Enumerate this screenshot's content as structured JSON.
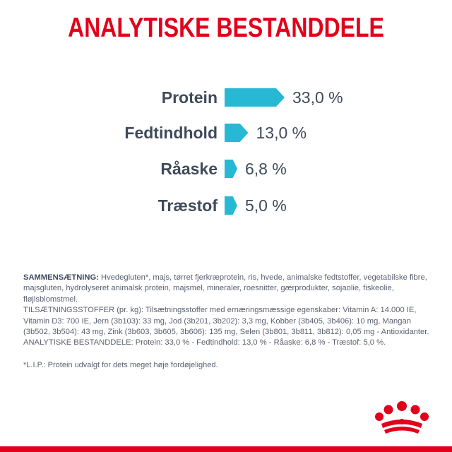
{
  "title": "ANALYTISKE BESTANDDELE",
  "accent_color": "#e2001a",
  "bar_color": "#27b8d3",
  "nutrients": [
    {
      "label": "Protein",
      "value_text": "33,0 %",
      "value": 33.0
    },
    {
      "label": "Fedtindhold",
      "value_text": "13,0 %",
      "value": 13.0
    },
    {
      "label": "Råaske",
      "value_text": "6,8 %",
      "value": 6.8
    },
    {
      "label": "Træstof",
      "value_text": "5,0 %",
      "value": 5.0
    }
  ],
  "composition": {
    "heading": "SAMMENSÆTNING:",
    "body": " Hvedegluten*, majs, tørret fjerkræprotein, ris, hvede, animalske fedtstoffer, vegetabilske fibre, majsgluten, hydrolyseret animalsk protein, majsmel, mineraler, roesnitter, gærprodukter, sojaolie, fiskeolie, fløjlsblomstmel.",
    "additives": "TILSÆTNINGSSTOFFER (pr. kg): Tilsætningsstoffer med ernæringsmæssige egenskaber: Vitamin A: 14.000 IE, Vitamin D3: 700 IE, Jern (3b103): 33 mg, Jod (3b201, 3b202): 3,3 mg, Kobber (3b405, 3b406): 10 mg, Mangan (3b502, 3b504): 43 mg, Zink (3b603, 3b605, 3b606): 135 mg, Selen (3b801, 3b811, 3b812): 0,05 mg - Antioxidanter.",
    "analytical": "ANALYTISKE BESTANDDELE: Protein: 33,0 % - Fedtindhold: 13,0 % - Råaske: 6,8 % - Træstof: 5,0 %."
  },
  "footnote": "*L.I.P.: Protein udvalgt for dets meget høje fordøjelighed.",
  "logo_icon": "royal-canin-crown-icon"
}
